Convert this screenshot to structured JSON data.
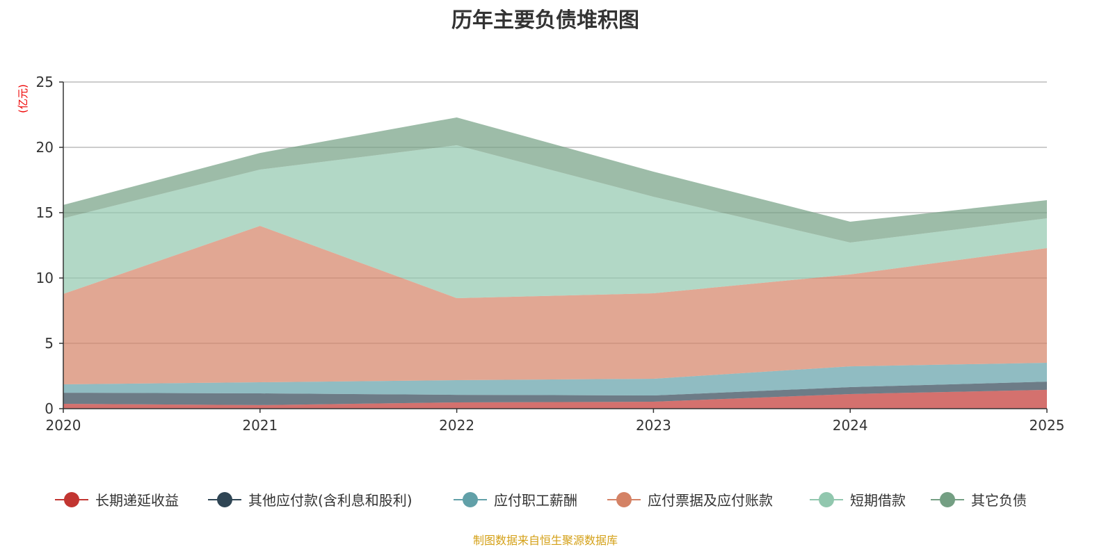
{
  "chart_data": {
    "type": "area",
    "stacked": true,
    "title": "历年主要负债堆积图",
    "ylabel": "(亿元)",
    "xlabel": "",
    "categories": [
      "2020",
      "2021",
      "2022",
      "2023",
      "2024",
      "2025"
    ],
    "ylim": [
      0,
      25
    ],
    "yticks": [
      0,
      5,
      10,
      15,
      20,
      25
    ],
    "grid": true,
    "legend_position": "bottom",
    "series": [
      {
        "name": "长期递延收益",
        "color": "#c23531",
        "values": [
          0.37,
          0.27,
          0.48,
          0.53,
          1.12,
          1.44
        ]
      },
      {
        "name": "其他应付款(含利息和股利)",
        "color": "#2f4554",
        "values": [
          0.85,
          0.9,
          0.58,
          0.48,
          0.53,
          0.63
        ]
      },
      {
        "name": "应付职工薪酬",
        "color": "#61a0a8",
        "values": [
          0.64,
          0.85,
          1.12,
          1.28,
          1.59,
          1.44
        ]
      },
      {
        "name": "应付票据及应付账款",
        "color": "#d48265",
        "values": [
          6.92,
          11.97,
          6.28,
          6.54,
          7.03,
          8.78
        ]
      },
      {
        "name": "短期借款",
        "color": "#91c7ae",
        "values": [
          5.79,
          4.31,
          11.7,
          7.39,
          2.44,
          2.28
        ]
      },
      {
        "name": "其它负债",
        "color": "#749f83",
        "values": [
          1.02,
          1.27,
          2.13,
          1.92,
          1.6,
          1.39
        ]
      }
    ],
    "source": "制图数据来自恒生聚源数据库"
  }
}
